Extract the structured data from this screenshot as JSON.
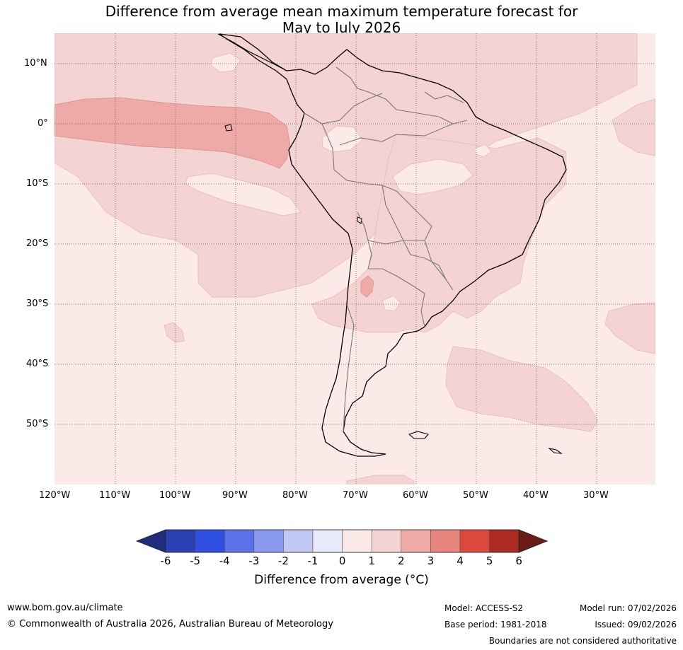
{
  "title": {
    "line1": "Difference from average mean maximum temperature forecast for",
    "line2": "May to July 2026"
  },
  "map": {
    "region": "South America",
    "lat_labels": [
      "10°N",
      "0°",
      "10°S",
      "20°S",
      "30°S",
      "40°S",
      "50°S"
    ],
    "lon_labels": [
      "120°W",
      "110°W",
      "100°W",
      "90°W",
      "80°W",
      "70°W",
      "60°W",
      "50°W",
      "40°W",
      "30°W"
    ]
  },
  "colorbar": {
    "ticks": [
      "-6",
      "-5",
      "-4",
      "-3",
      "-2",
      "-1",
      "0",
      "1",
      "2",
      "3",
      "4",
      "5",
      "6"
    ],
    "colors": [
      "#1f2d7a",
      "#2a3fb0",
      "#2f4fe0",
      "#5b72e6",
      "#8898ec",
      "#c2c8f4",
      "#e9eaf9",
      "#fbeae8",
      "#f4d4d2",
      "#edaaa7",
      "#e8847e",
      "#dc4a3e",
      "#ab2b22",
      "#6b1c17"
    ],
    "title": "Difference from average (°C)",
    "title_text": "Difference from average (",
    "title_unit": "°C)"
  },
  "footer": {
    "website": "www.bom.gov.au/climate",
    "copyright": "© Commonwealth of Australia 2026, Australian Bureau of Meteorology",
    "model": "Model: ACCESS-S2",
    "base_period": "Base period: 1981-2018",
    "model_run": "Model run: 07/02/2026",
    "issued": "Issued: 09/02/2026",
    "disclaimer": "Boundaries are not considered authoritative"
  }
}
